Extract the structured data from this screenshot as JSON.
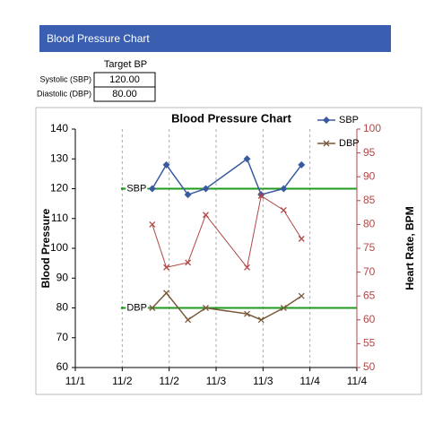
{
  "header": {
    "title": "Blood Pressure Chart"
  },
  "table": {
    "title": "Target BP",
    "rows": [
      [
        "Systolic (SBP)",
        "120.00"
      ],
      [
        "Diastolic (DBP)",
        "80.00"
      ]
    ]
  },
  "chart_data": {
    "type": "line",
    "title": "Blood Pressure Chart",
    "y_label": "Blood Pressure",
    "y2_label": "Heart Rate, BPM",
    "xlim": [
      0,
      3
    ],
    "xticks": [
      {
        "value": 0,
        "label": "11/1"
      },
      {
        "value": 0.5,
        "label": "11/2"
      },
      {
        "value": 1,
        "label": "11/2"
      },
      {
        "value": 1.5,
        "label": "11/3"
      },
      {
        "value": 2,
        "label": "11/3"
      },
      {
        "value": 2.5,
        "label": "11/4"
      },
      {
        "value": 3,
        "label": "11/4"
      }
    ],
    "ylim": [
      60,
      140
    ],
    "yticks": [
      60,
      70,
      80,
      90,
      100,
      110,
      120,
      130,
      140
    ],
    "y2lim": [
      50,
      100
    ],
    "y2ticks": [
      50,
      55,
      60,
      65,
      70,
      75,
      80,
      85,
      90,
      95,
      100
    ],
    "x": [
      0.82,
      0.97,
      1.2,
      1.39,
      1.83,
      1.98,
      2.22,
      2.41
    ],
    "series": [
      {
        "name": "SBP",
        "color": "#3a5aa0",
        "marker": "diamond",
        "values": [
          120,
          128,
          118,
          120,
          130,
          118,
          120,
          128
        ]
      },
      {
        "name": "DBP",
        "color": "#7a5a3a",
        "marker": "x",
        "values": [
          80,
          85,
          76,
          80,
          78,
          76,
          80,
          84
        ]
      },
      {
        "color": "#b04848",
        "marker": "x",
        "axis": "y2",
        "values": [
          80,
          71,
          72,
          82,
          71,
          86,
          83,
          77
        ]
      }
    ],
    "targets": [
      {
        "label": "SBP",
        "value": 120,
        "x": [
          0.5,
          3
        ]
      },
      {
        "label": "DBP",
        "value": 80,
        "x": [
          0.5,
          3
        ]
      }
    ],
    "target_color": "#1f9a1f",
    "grid": true,
    "legend": "top-right"
  }
}
